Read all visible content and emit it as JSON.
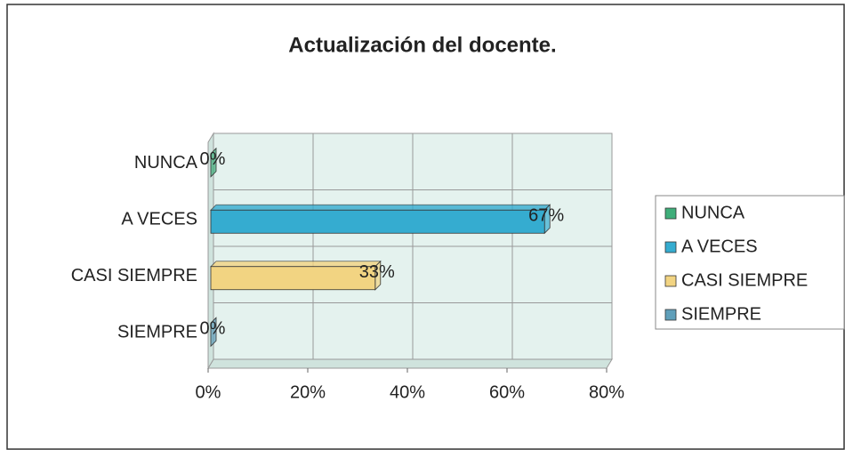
{
  "chart_data": {
    "type": "bar",
    "orientation": "horizontal",
    "title": "Actualización del docente.",
    "categories": [
      "NUNCA",
      "A VECES",
      "CASI SIEMPRE",
      "SIEMPRE"
    ],
    "values": [
      0,
      67,
      33,
      0
    ],
    "value_labels": [
      "0%",
      "67%",
      "33%",
      "0%"
    ],
    "colors": [
      "#3fae7a",
      "#35acd0",
      "#f2d482",
      "#5f9fba"
    ],
    "xlim": [
      0,
      80
    ],
    "xticks": [
      {
        "value": 0,
        "label": "0%"
      },
      {
        "value": 20,
        "label": "20%"
      },
      {
        "value": 40,
        "label": "40%"
      },
      {
        "value": 60,
        "label": "60%"
      },
      {
        "value": 80,
        "label": "80%"
      }
    ],
    "grid": true,
    "legend": "right"
  }
}
